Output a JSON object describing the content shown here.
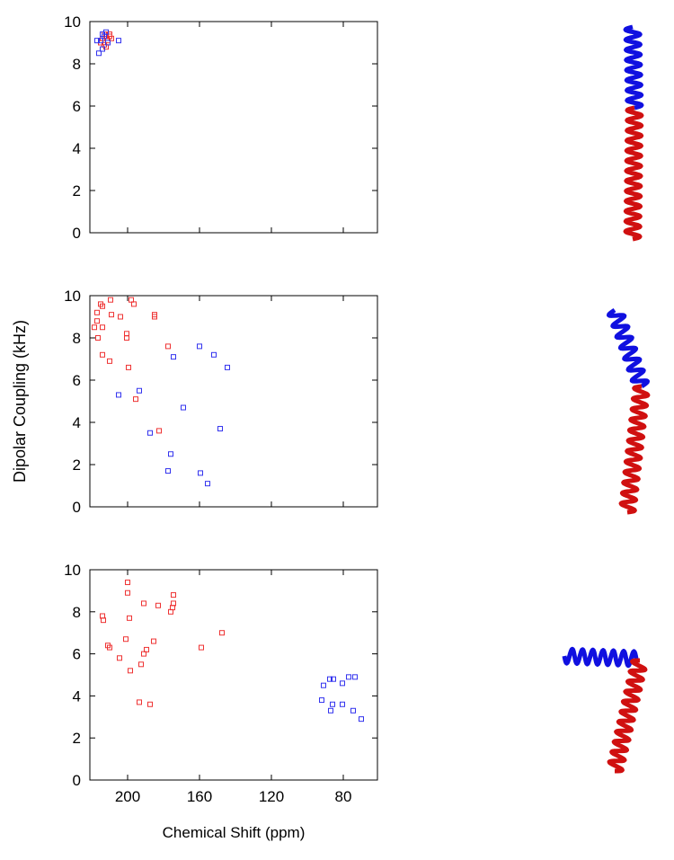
{
  "chart_data": [
    {
      "type": "scatter",
      "xlim": [
        221,
        61
      ],
      "ylim": [
        0,
        10
      ],
      "xticks": [
        200,
        160,
        120,
        80
      ],
      "yticks": [
        0,
        2,
        4,
        6,
        8,
        10
      ],
      "series": [
        {
          "color": "#ee3333",
          "x": [
            214,
            213,
            212,
            210,
            211,
            213,
            209,
            215,
            212,
            210
          ],
          "values": [
            9.2,
            9.4,
            9.3,
            9.3,
            9.1,
            8.9,
            9.2,
            9.0,
            8.8,
            9.4
          ]
        },
        {
          "color": "#3333ee",
          "x": [
            216,
            214,
            215,
            213,
            211,
            205,
            214,
            212,
            217
          ],
          "values": [
            8.5,
            8.7,
            9.1,
            9.3,
            9.0,
            9.1,
            9.4,
            9.5,
            9.1
          ]
        }
      ]
    },
    {
      "type": "scatter",
      "ylabel": "Dipolar Coupling (kHz)",
      "xlim": [
        221,
        61
      ],
      "ylim": [
        0,
        10
      ],
      "xticks": [
        200,
        160,
        120,
        80
      ],
      "yticks": [
        0,
        2,
        4,
        6,
        8,
        10
      ],
      "series": [
        {
          "color": "#ee3333",
          "x": [
            209.5,
            198,
            196.5,
            215,
            214,
            209,
            204,
            185,
            185,
            217,
            217,
            218.5,
            214,
            216.5,
            200.5,
            200.5,
            177.5,
            214,
            210,
            199.5,
            195.5,
            182.5
          ],
          "values": [
            9.8,
            9.8,
            9.6,
            9.6,
            9.5,
            9.1,
            9.0,
            9.1,
            9.0,
            9.2,
            8.8,
            8.5,
            8.5,
            8.0,
            8.2,
            8.0,
            7.6,
            7.2,
            6.9,
            6.6,
            5.1,
            3.6
          ]
        },
        {
          "color": "#3333ee",
          "x": [
            160,
            174.5,
            152,
            144.5,
            205,
            193.5,
            169,
            148.5,
            187.5,
            176,
            177.5,
            159.5,
            155.5
          ],
          "values": [
            7.6,
            7.1,
            7.2,
            6.6,
            5.3,
            5.5,
            4.7,
            3.7,
            3.5,
            2.5,
            1.7,
            1.6,
            1.1
          ]
        }
      ]
    },
    {
      "type": "scatter",
      "xlabel": "Chemical Shift (ppm)",
      "xlim": [
        221,
        61
      ],
      "ylim": [
        0,
        10
      ],
      "xticks": [
        200,
        160,
        120,
        80
      ],
      "yticks": [
        0,
        2,
        4,
        6,
        8,
        10
      ],
      "series": [
        {
          "color": "#ee3333",
          "x": [
            200,
            200,
            174.5,
            191,
            174.5,
            183,
            175,
            176,
            214,
            213.5,
            199,
            147.5,
            201,
            185.5,
            211,
            210,
            159,
            189.5,
            191,
            204.5,
            192.5,
            198.5,
            193.5,
            187.5
          ],
          "values": [
            9.4,
            8.9,
            8.8,
            8.4,
            8.4,
            8.3,
            8.2,
            8.0,
            7.8,
            7.6,
            7.7,
            7.0,
            6.7,
            6.6,
            6.4,
            6.3,
            6.3,
            6.2,
            6.0,
            5.8,
            5.5,
            5.2,
            3.7,
            3.6
          ]
        },
        {
          "color": "#3333ee",
          "x": [
            77,
            73.5,
            85.5,
            87.5,
            80.5,
            91,
            92,
            86,
            80.5,
            87,
            74.5,
            70
          ],
          "values": [
            4.9,
            4.9,
            4.8,
            4.8,
            4.6,
            4.5,
            3.8,
            3.6,
            3.6,
            3.3,
            3.3,
            2.9
          ]
        }
      ]
    }
  ]
}
